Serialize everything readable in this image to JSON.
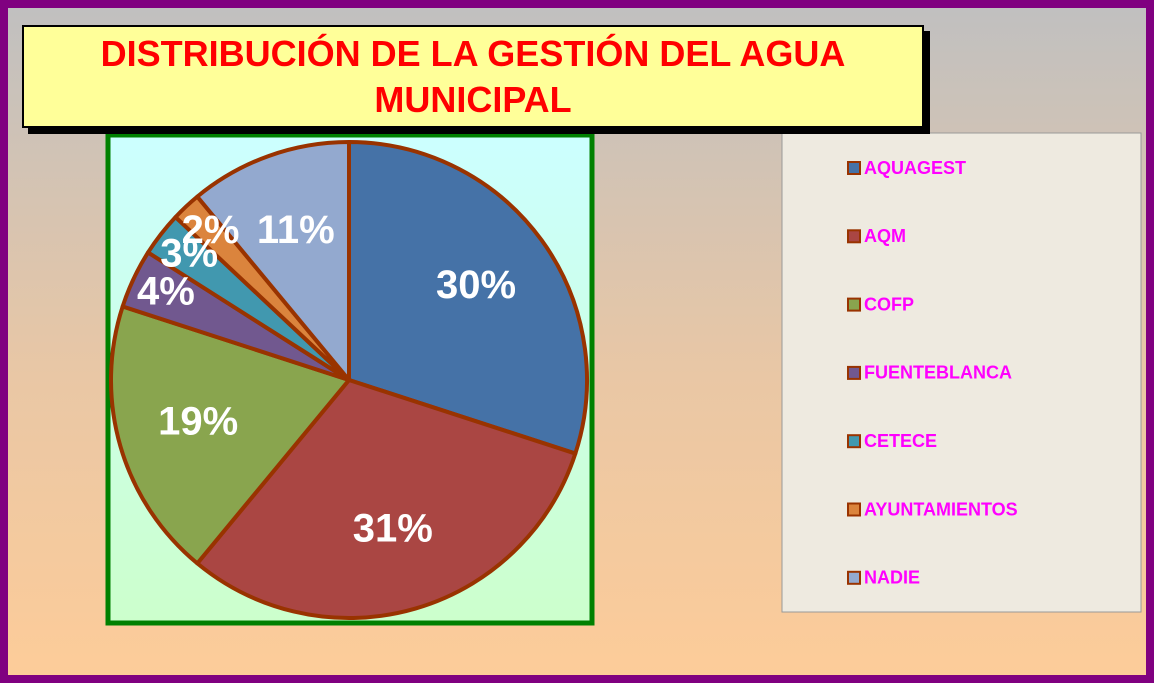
{
  "chart_data": {
    "type": "pie",
    "title": "DISTRIBUCIÓN DE LA GESTIÓN DEL AGUA MUNICIPAL",
    "categories": [
      "AQUAGEST",
      "AQM",
      "COFP",
      "FUENTEBLANCA",
      "CETECE",
      "AYUNTAMIENTOS",
      "NADIE"
    ],
    "values": [
      30,
      31,
      19,
      4,
      3,
      2,
      11
    ],
    "value_labels": [
      "30%",
      "31%",
      "19%",
      "4%",
      "3%",
      "2%",
      "11%"
    ],
    "colors": [
      "#4572a7",
      "#aa4643",
      "#89a54e",
      "#71588f",
      "#4198af",
      "#db843d",
      "#93a9cf"
    ],
    "legend": "right"
  }
}
